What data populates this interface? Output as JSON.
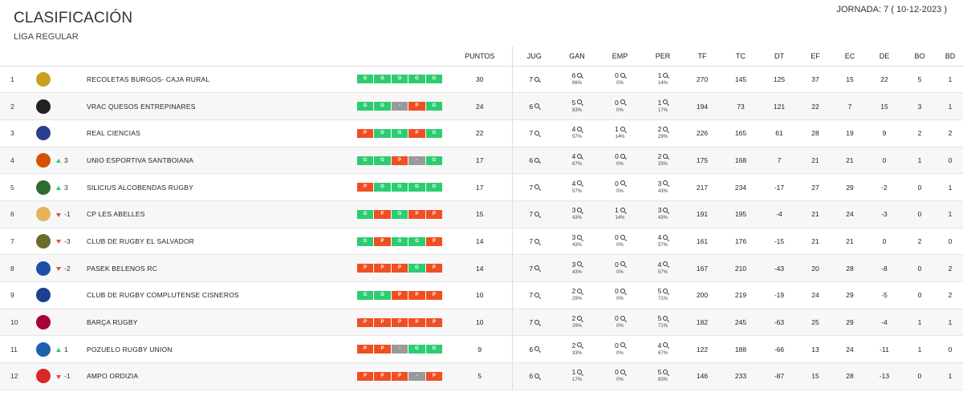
{
  "header": {
    "title": "CLASIFICACIÓN",
    "subtitle": "LIGA REGULAR",
    "jornada": "JORNADA: 7 ( 10-12-2023 )"
  },
  "columns": [
    "PUNTOS",
    "JUG",
    "GAN",
    "EMP",
    "PER",
    "TF",
    "TC",
    "DT",
    "EF",
    "EC",
    "DE",
    "BO",
    "BD"
  ],
  "colors": {
    "win": "#2ecc71",
    "loss": "#f04e23",
    "draw": "#9a9a9a",
    "up": "#2ecc71",
    "down": "#e74c3c"
  },
  "rows": [
    {
      "pos": "1",
      "logo": "recoletas-logo",
      "logo_color": "#c8a21e",
      "change": "",
      "dir": "",
      "team": "RECOLETAS BURGOS- CAJA RURAL",
      "form": [
        "G",
        "G",
        "G",
        "G",
        "G"
      ],
      "pts": "30",
      "jug": "7",
      "gan": "6",
      "gan_pct": "86%",
      "emp": "0",
      "emp_pct": "0%",
      "per": "1",
      "per_pct": "14%",
      "tf": "270",
      "tc": "145",
      "dt": "125",
      "ef": "37",
      "ec": "15",
      "de": "22",
      "bo": "5",
      "bd": "1"
    },
    {
      "pos": "2",
      "logo": "vrac-logo",
      "logo_color": "#222222",
      "change": "",
      "dir": "",
      "team": "VRAC QUESOS ENTREPINARES",
      "form": [
        "G",
        "G",
        "-",
        "P",
        "G"
      ],
      "pts": "24",
      "jug": "6",
      "gan": "5",
      "gan_pct": "83%",
      "emp": "0",
      "emp_pct": "0%",
      "per": "1",
      "per_pct": "17%",
      "tf": "194",
      "tc": "73",
      "dt": "121",
      "ef": "22",
      "ec": "7",
      "de": "15",
      "bo": "3",
      "bd": "1"
    },
    {
      "pos": "3",
      "logo": "ciencias-logo",
      "logo_color": "#2c3e8f",
      "change": "",
      "dir": "",
      "team": "REAL CIENCIAS",
      "form": [
        "P",
        "G",
        "G",
        "P",
        "G"
      ],
      "pts": "22",
      "jug": "7",
      "gan": "4",
      "gan_pct": "57%",
      "emp": "1",
      "emp_pct": "14%",
      "per": "2",
      "per_pct": "29%",
      "tf": "226",
      "tc": "165",
      "dt": "61",
      "ef": "28",
      "ec": "19",
      "de": "9",
      "bo": "2",
      "bd": "2"
    },
    {
      "pos": "4",
      "logo": "santboiana-logo",
      "logo_color": "#d35400",
      "change": "3",
      "dir": "up",
      "team": "UNIO ESPORTIVA SANTBOIANA",
      "form": [
        "G",
        "G",
        "P",
        "-",
        "G"
      ],
      "pts": "17",
      "jug": "6",
      "gan": "4",
      "gan_pct": "67%",
      "emp": "0",
      "emp_pct": "0%",
      "per": "2",
      "per_pct": "33%",
      "tf": "175",
      "tc": "168",
      "dt": "7",
      "ef": "21",
      "ec": "21",
      "de": "0",
      "bo": "1",
      "bd": "0"
    },
    {
      "pos": "5",
      "logo": "alcobendas-logo",
      "logo_color": "#2e6b2e",
      "change": "3",
      "dir": "up",
      "team": "SILICIUS ALCOBENDAS RUGBY",
      "form": [
        "P",
        "G",
        "G",
        "G",
        "G"
      ],
      "pts": "17",
      "jug": "7",
      "gan": "4",
      "gan_pct": "57%",
      "emp": "0",
      "emp_pct": "0%",
      "per": "3",
      "per_pct": "43%",
      "tf": "217",
      "tc": "234",
      "dt": "-17",
      "ef": "27",
      "ec": "29",
      "de": "-2",
      "bo": "0",
      "bd": "1"
    },
    {
      "pos": "6",
      "logo": "abelles-logo",
      "logo_color": "#e6b35a",
      "change": "-1",
      "dir": "down",
      "team": "CP LES ABELLES",
      "form": [
        "G",
        "P",
        "G",
        "P",
        "P"
      ],
      "pts": "15",
      "jug": "7",
      "gan": "3",
      "gan_pct": "43%",
      "emp": "1",
      "emp_pct": "14%",
      "per": "3",
      "per_pct": "43%",
      "tf": "191",
      "tc": "195",
      "dt": "-4",
      "ef": "21",
      "ec": "24",
      "de": "-3",
      "bo": "0",
      "bd": "1"
    },
    {
      "pos": "7",
      "logo": "salvador-logo",
      "logo_color": "#6b6b2e",
      "change": "-3",
      "dir": "down",
      "team": "CLUB DE RUGBY EL SALVADOR",
      "form": [
        "G",
        "P",
        "G",
        "G",
        "P"
      ],
      "pts": "14",
      "jug": "7",
      "gan": "3",
      "gan_pct": "43%",
      "emp": "0",
      "emp_pct": "0%",
      "per": "4",
      "per_pct": "57%",
      "tf": "161",
      "tc": "176",
      "dt": "-15",
      "ef": "21",
      "ec": "21",
      "de": "0",
      "bo": "2",
      "bd": "0"
    },
    {
      "pos": "8",
      "logo": "belenos-logo",
      "logo_color": "#1f4fa8",
      "change": "-2",
      "dir": "down",
      "team": "PASEK BELENOS RC",
      "form": [
        "P",
        "P",
        "P",
        "G",
        "P"
      ],
      "pts": "14",
      "jug": "7",
      "gan": "3",
      "gan_pct": "43%",
      "emp": "0",
      "emp_pct": "0%",
      "per": "4",
      "per_pct": "57%",
      "tf": "167",
      "tc": "210",
      "dt": "-43",
      "ef": "20",
      "ec": "28",
      "de": "-8",
      "bo": "0",
      "bd": "2"
    },
    {
      "pos": "9",
      "logo": "cisneros-logo",
      "logo_color": "#1c3f8f",
      "change": "",
      "dir": "",
      "team": "CLUB DE RUGBY COMPLUTENSE CISNEROS",
      "form": [
        "G",
        "G",
        "P",
        "P",
        "P"
      ],
      "pts": "10",
      "jug": "7",
      "gan": "2",
      "gan_pct": "29%",
      "emp": "0",
      "emp_pct": "0%",
      "per": "5",
      "per_pct": "71%",
      "tf": "200",
      "tc": "219",
      "dt": "-19",
      "ef": "24",
      "ec": "29",
      "de": "-5",
      "bo": "0",
      "bd": "2"
    },
    {
      "pos": "10",
      "logo": "barca-logo",
      "logo_color": "#a5003c",
      "change": "",
      "dir": "",
      "team": "BARÇA RUGBY",
      "form": [
        "P",
        "P",
        "P",
        "P",
        "P"
      ],
      "pts": "10",
      "jug": "7",
      "gan": "2",
      "gan_pct": "29%",
      "emp": "0",
      "emp_pct": "0%",
      "per": "5",
      "per_pct": "71%",
      "tf": "182",
      "tc": "245",
      "dt": "-63",
      "ef": "25",
      "ec": "29",
      "de": "-4",
      "bo": "1",
      "bd": "1"
    },
    {
      "pos": "11",
      "logo": "pozuelo-logo",
      "logo_color": "#1e5fb0",
      "change": "1",
      "dir": "up",
      "team": "POZUELO RUGBY UNION",
      "form": [
        "P",
        "P",
        "-",
        "G",
        "G"
      ],
      "pts": "9",
      "jug": "6",
      "gan": "2",
      "gan_pct": "33%",
      "emp": "0",
      "emp_pct": "0%",
      "per": "4",
      "per_pct": "67%",
      "tf": "122",
      "tc": "188",
      "dt": "-66",
      "ef": "13",
      "ec": "24",
      "de": "-11",
      "bo": "1",
      "bd": "0"
    },
    {
      "pos": "12",
      "logo": "ordizia-logo",
      "logo_color": "#d62828",
      "change": "-1",
      "dir": "down",
      "team": "AMPO ORDIZIA",
      "form": [
        "P",
        "P",
        "P",
        "-",
        "P"
      ],
      "pts": "5",
      "jug": "6",
      "gan": "1",
      "gan_pct": "17%",
      "emp": "0",
      "emp_pct": "0%",
      "per": "5",
      "per_pct": "83%",
      "tf": "146",
      "tc": "233",
      "dt": "-87",
      "ef": "15",
      "ec": "28",
      "de": "-13",
      "bo": "0",
      "bd": "1"
    }
  ]
}
